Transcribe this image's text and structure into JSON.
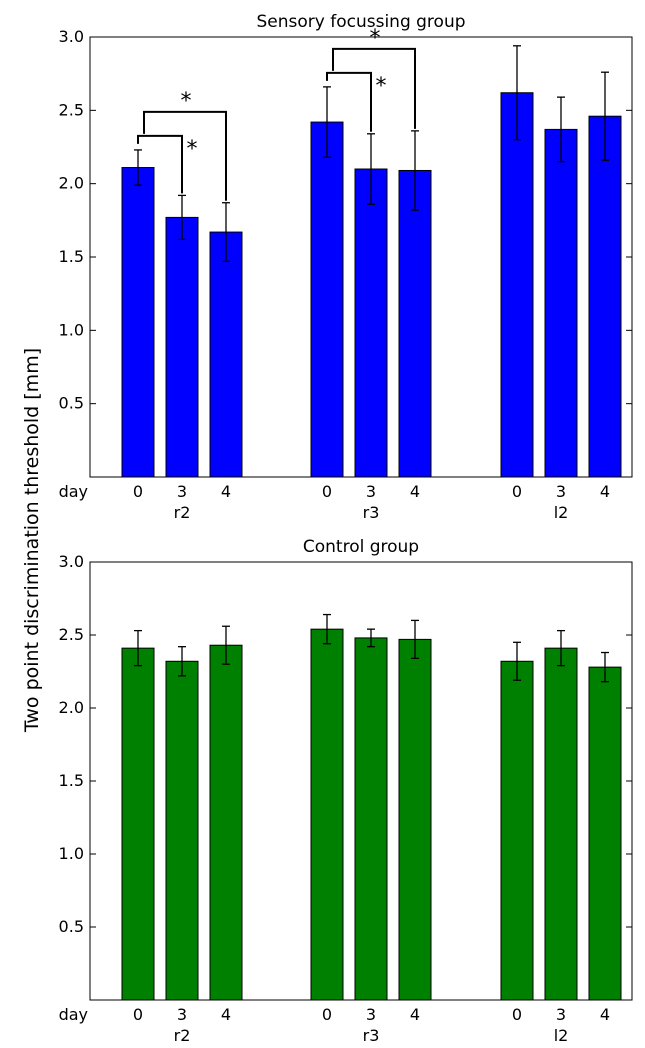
{
  "ylabel": "Two point discrimination threshold [mm]",
  "colors": {
    "sensory": "#0000ff",
    "control": "#008000"
  },
  "chart_data": [
    {
      "type": "bar",
      "title": "Sensory focussing group",
      "ylim": [
        0,
        3.0
      ],
      "yticks": [
        "0.5",
        "1.0",
        "1.5",
        "2.0",
        "2.5",
        "3.0"
      ],
      "day_label": "day",
      "days": [
        "0",
        "3",
        "4"
      ],
      "groups": [
        {
          "name": "r2",
          "values": [
            2.11,
            1.77,
            1.67
          ],
          "errors": [
            0.12,
            0.15,
            0.2
          ]
        },
        {
          "name": "r3",
          "values": [
            2.42,
            2.1,
            2.09
          ],
          "errors": [
            0.24,
            0.24,
            0.27
          ]
        },
        {
          "name": "l2",
          "values": [
            2.62,
            2.37,
            2.46
          ],
          "errors": [
            0.32,
            0.22,
            0.3
          ]
        }
      ],
      "significance": [
        {
          "group": 0,
          "from": 0,
          "to": 1,
          "label": "*"
        },
        {
          "group": 0,
          "from": 0,
          "to": 2,
          "label": "*"
        },
        {
          "group": 1,
          "from": 0,
          "to": 1,
          "label": "*"
        },
        {
          "group": 1,
          "from": 0,
          "to": 2,
          "label": "*"
        }
      ]
    },
    {
      "type": "bar",
      "title": "Control group",
      "ylim": [
        0,
        3.0
      ],
      "yticks": [
        "0.5",
        "1.0",
        "1.5",
        "2.0",
        "2.5",
        "3.0"
      ],
      "day_label": "day",
      "days": [
        "0",
        "3",
        "4"
      ],
      "groups": [
        {
          "name": "r2",
          "values": [
            2.41,
            2.32,
            2.43
          ],
          "errors": [
            0.12,
            0.1,
            0.13
          ]
        },
        {
          "name": "r3",
          "values": [
            2.54,
            2.48,
            2.47
          ],
          "errors": [
            0.1,
            0.06,
            0.13
          ]
        },
        {
          "name": "l2",
          "values": [
            2.32,
            2.41,
            2.28
          ],
          "errors": [
            0.13,
            0.12,
            0.1
          ]
        }
      ],
      "significance": []
    }
  ]
}
